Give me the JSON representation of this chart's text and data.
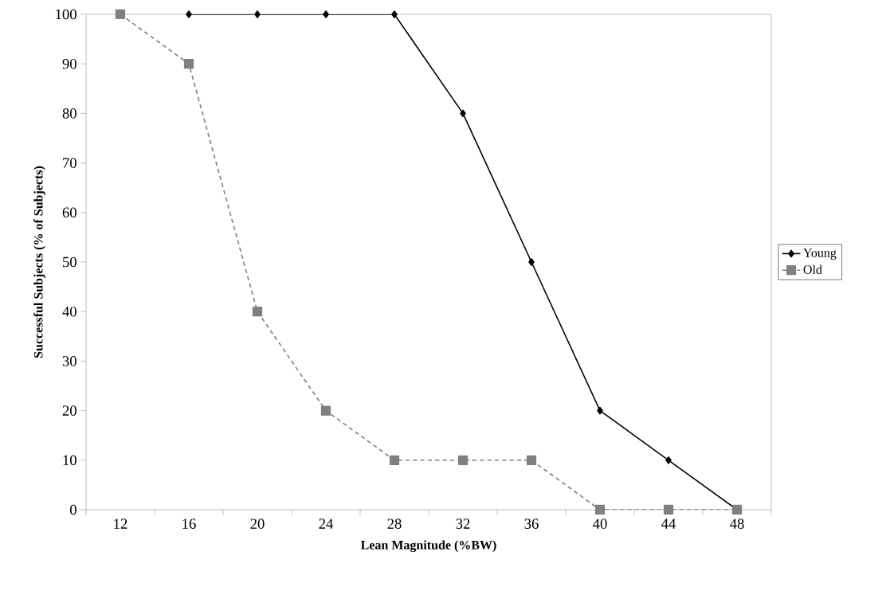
{
  "chart_data": {
    "type": "line",
    "xlabel": "Lean Magnitude (%BW)",
    "ylabel": "Successful Subjects (% of Subjects)",
    "categories": [
      "12",
      "16",
      "20",
      "24",
      "28",
      "32",
      "36",
      "40",
      "44",
      "48"
    ],
    "series": [
      {
        "name": "Young",
        "color": "#000000",
        "marker": "diamond",
        "line_style": "solid",
        "values": [
          null,
          100,
          100,
          100,
          100,
          80,
          50,
          20,
          10,
          0
        ]
      },
      {
        "name": "Old",
        "color": "#808080",
        "marker": "square",
        "line_style": "dashed",
        "values": [
          100,
          90,
          40,
          20,
          10,
          10,
          10,
          0,
          0,
          0
        ]
      }
    ],
    "ylim": [
      0,
      100
    ],
    "yticks": [
      0,
      10,
      20,
      30,
      40,
      50,
      60,
      70,
      80,
      90,
      100
    ],
    "grid": false,
    "legend": "right"
  }
}
